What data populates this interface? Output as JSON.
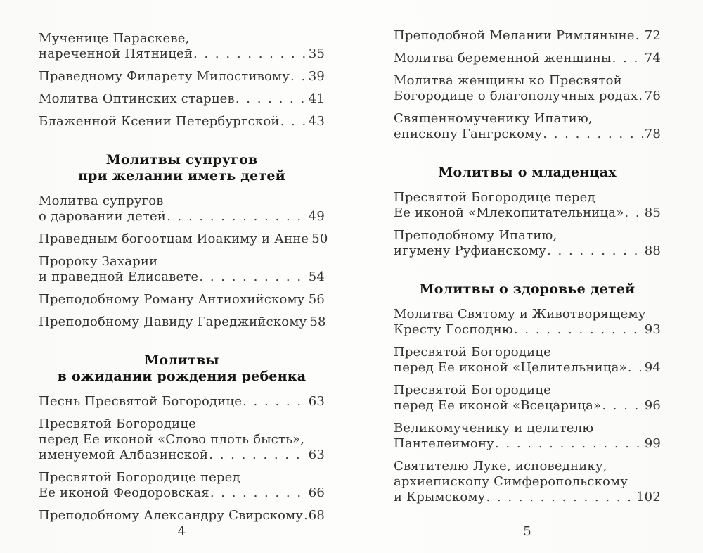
{
  "document": {
    "kind": "book-table-of-contents-scan",
    "language": "ru",
    "paper_color": "#fdfdfc",
    "text_color": "#333231",
    "heading_color": "#161514"
  },
  "pages": [
    {
      "page_number": "4",
      "blocks": [
        {
          "kind": "entry",
          "lines": [
            "Мученице Параскеве,"
          ],
          "last": "нареченной Пятницей",
          "page": "35"
        },
        {
          "kind": "entry",
          "lines": [],
          "last": "Праведному Филарету Милостивому",
          "page": "39"
        },
        {
          "kind": "entry",
          "lines": [],
          "last": "Молитва Оптинских старцев",
          "page": "41"
        },
        {
          "kind": "entry",
          "lines": [],
          "last": "Блаженной Ксении Петербургской",
          "page": "43"
        },
        {
          "kind": "heading",
          "lines": [
            "Молитвы супругов",
            "при желании иметь детей"
          ]
        },
        {
          "kind": "entry",
          "lines": [
            "Молитва супругов"
          ],
          "last": "о даровании детей",
          "page": "49"
        },
        {
          "kind": "entry",
          "lines": [],
          "last": "Праведным богоотцам Иоакиму и Анне",
          "page": "50"
        },
        {
          "kind": "entry",
          "lines": [
            "Пророку Захарии"
          ],
          "last": "и праведной Елисавете",
          "page": "54"
        },
        {
          "kind": "entry",
          "lines": [],
          "last": "Преподобному Роману Антиохийскому",
          "page": "56"
        },
        {
          "kind": "entry",
          "lines": [],
          "last": "Преподобному Давиду Гареджийскому",
          "page": "58"
        },
        {
          "kind": "heading",
          "lines": [
            "Молитвы",
            "в ожидании рождения ребенка"
          ]
        },
        {
          "kind": "entry",
          "lines": [],
          "last": "Песнь Пресвятой Богородице",
          "page": "63"
        },
        {
          "kind": "entry",
          "lines": [
            "Пресвятой Богородице",
            "перед Ее иконой «Слово плоть бысть»,"
          ],
          "last": "именуемой Албазинской",
          "page": "63"
        },
        {
          "kind": "entry",
          "lines": [
            "Пресвятой Богородице перед"
          ],
          "last": "Ее иконой Феодоровская",
          "page": "66"
        },
        {
          "kind": "entry",
          "lines": [],
          "last": "Преподобному Александру Свирскому",
          "page": "68"
        }
      ]
    },
    {
      "page_number": "5",
      "blocks": [
        {
          "kind": "entry",
          "lines": [],
          "last": "Преподобной Мелании Римляныне",
          "page": "72"
        },
        {
          "kind": "entry",
          "lines": [],
          "last": "Молитва беременной женщины",
          "page": "74"
        },
        {
          "kind": "entry",
          "lines": [
            "Молитва женщины ко Пресвятой"
          ],
          "last": "Богородице о благополучных родах",
          "page": "76"
        },
        {
          "kind": "entry",
          "lines": [
            "Священномученику Ипатию,"
          ],
          "last": "епископу Гангрскому",
          "page": "78"
        },
        {
          "kind": "heading",
          "lines": [
            "Молитвы о младенцах"
          ]
        },
        {
          "kind": "entry",
          "lines": [
            "Пресвятой Богородице перед"
          ],
          "last": "Ее иконой «Млекопитательница»",
          "page": "85"
        },
        {
          "kind": "entry",
          "lines": [
            "Преподобному Ипатию,"
          ],
          "last": "игумену Руфианскому",
          "page": "88"
        },
        {
          "kind": "heading",
          "lines": [
            "Молитвы о здоровье детей"
          ]
        },
        {
          "kind": "entry",
          "lines": [
            "Молитва Святому и Животворящему"
          ],
          "last": "Кресту Господню",
          "page": "93"
        },
        {
          "kind": "entry",
          "lines": [
            "Пресвятой Богородице"
          ],
          "last": "перед Ее иконой «Целительница»",
          "page": "94"
        },
        {
          "kind": "entry",
          "lines": [
            "Пресвятой Богородице"
          ],
          "last": "перед Ее иконой «Всецарица»",
          "page": "96"
        },
        {
          "kind": "entry",
          "lines": [
            "Великомученику и целителю"
          ],
          "last": "Пантелеимону",
          "page": "99"
        },
        {
          "kind": "entry",
          "lines": [
            "Святителю Луке, исповеднику,",
            "архиепископу Симферопольскому"
          ],
          "last": "и Крымскому",
          "page": "102"
        }
      ]
    }
  ]
}
